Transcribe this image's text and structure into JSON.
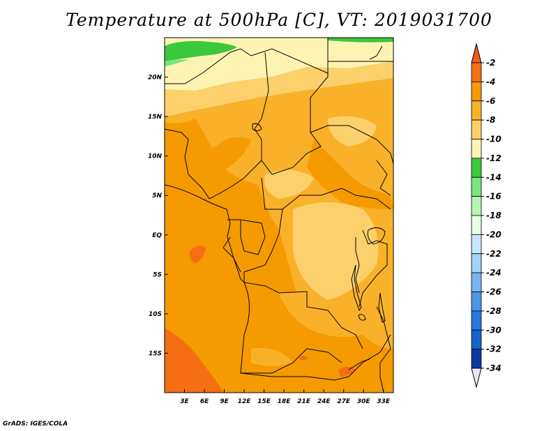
{
  "title": "Temperature at 500hPa [C], VT: 2019031700",
  "credit": "GrADS: IGES/COLA",
  "map": {
    "lon_range": [
      0,
      34.5
    ],
    "lat_range": [
      -20,
      25
    ],
    "lon_ticks": [
      {
        "value": 3,
        "label": "3E"
      },
      {
        "value": 6,
        "label": "6E"
      },
      {
        "value": 9,
        "label": "9E"
      },
      {
        "value": 12,
        "label": "12E"
      },
      {
        "value": 15,
        "label": "15E"
      },
      {
        "value": 18,
        "label": "18E"
      },
      {
        "value": 21,
        "label": "21E"
      },
      {
        "value": 24,
        "label": "24E"
      },
      {
        "value": 27,
        "label": "27E"
      },
      {
        "value": 30,
        "label": "30E"
      },
      {
        "value": 33,
        "label": "33E"
      }
    ],
    "lat_ticks": [
      {
        "value": 20,
        "label": "20N"
      },
      {
        "value": 15,
        "label": "15N"
      },
      {
        "value": 10,
        "label": "10N"
      },
      {
        "value": 5,
        "label": "5N"
      },
      {
        "value": 0,
        "label": "EQ"
      },
      {
        "value": -5,
        "label": "5S"
      },
      {
        "value": -10,
        "label": "10S"
      },
      {
        "value": -15,
        "label": "15S"
      }
    ]
  },
  "colorbar": {
    "top_arrow_color": "#f05a1e",
    "bottom_arrow_color": "#e6e6fa",
    "levels": [
      "-2",
      "-4",
      "-6",
      "-8",
      "-10",
      "-12",
      "-14",
      "-16",
      "-18",
      "-20",
      "-22",
      "-24",
      "-26",
      "-28",
      "-30",
      "-32",
      "-34"
    ],
    "colors": [
      "#f56e14",
      "#f59a00",
      "#fab12a",
      "#fcd16c",
      "#fdf4b4",
      "#3cc83c",
      "#78e678",
      "#b4f5b4",
      "#e6fde6",
      "#c8e6fa",
      "#a0d2fa",
      "#78b4f0",
      "#4b96e6",
      "#2878dc",
      "#1464c8",
      "#0a3ca0",
      "#0a0a64"
    ]
  }
}
